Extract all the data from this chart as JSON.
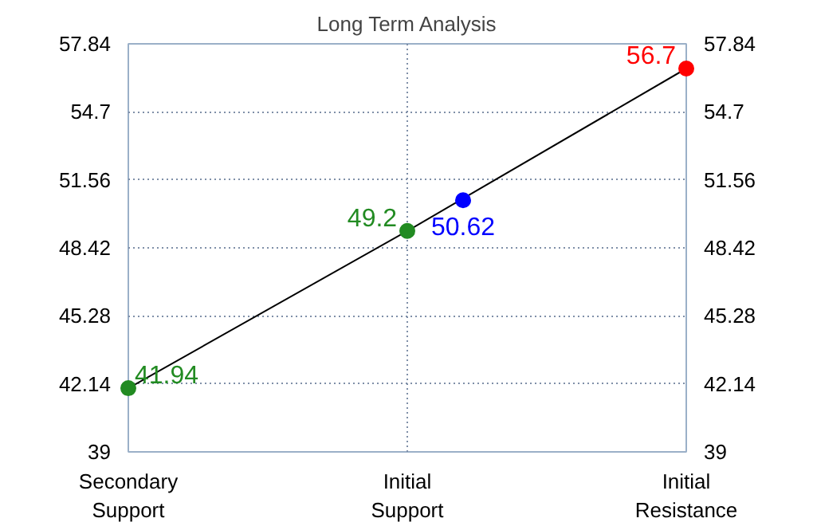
{
  "chart_data": {
    "type": "scatter",
    "title": "Long Term Analysis",
    "categories": [
      "Secondary Support",
      "Initial Support",
      "Initial Resistance"
    ],
    "ylim": [
      39,
      57.84
    ],
    "yticks": [
      39,
      42.14,
      45.28,
      48.42,
      51.56,
      54.7,
      57.84
    ],
    "y2lim": [
      39,
      57.84
    ],
    "y2ticks": [
      39,
      42.14,
      45.28,
      48.42,
      51.56,
      54.7,
      57.84
    ],
    "grid": true,
    "marker": "circle",
    "series": [
      {
        "type": "line",
        "color": "#000000",
        "values": [
          41.94,
          49.2,
          56.7
        ],
        "marker": "none"
      },
      {
        "values": [
          41.94,
          49.2,
          56.7
        ],
        "colors": [
          "#228b22",
          "#228b22",
          "#ff0000"
        ],
        "value_labels": [
          "41.94",
          "49.2",
          "56.7"
        ]
      },
      {
        "values": [
          null,
          50.62,
          null
        ],
        "color": "#0000ff",
        "value_labels": [
          null,
          "50.62",
          null
        ]
      }
    ]
  }
}
